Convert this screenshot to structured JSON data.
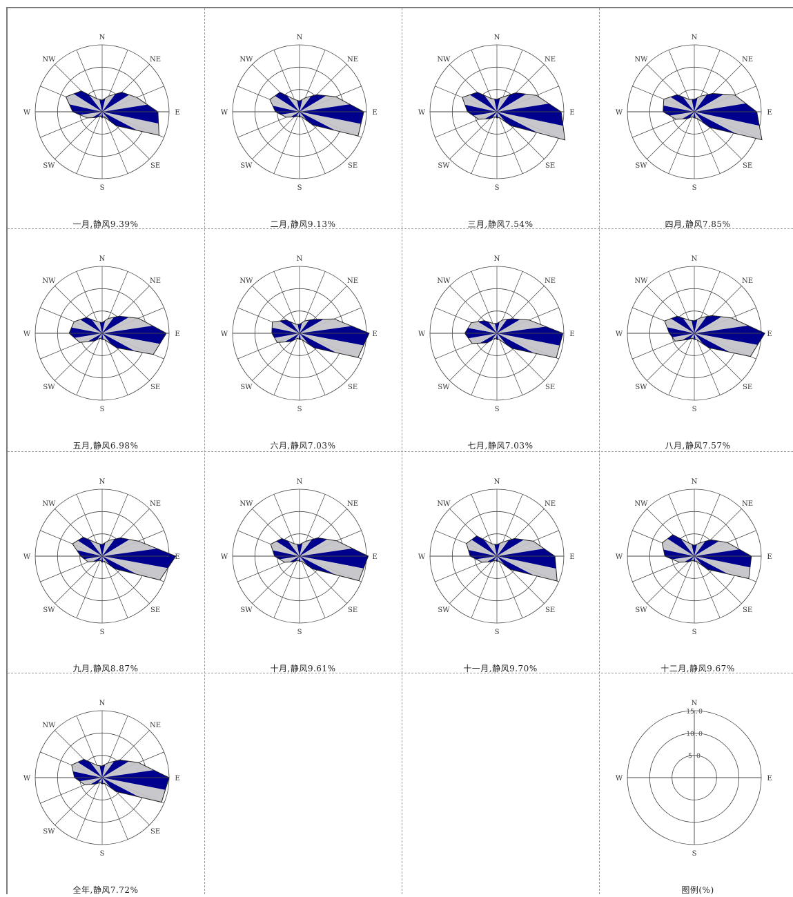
{
  "directions": [
    "N",
    "NNE",
    "NE",
    "ENE",
    "E",
    "ESE",
    "SE",
    "SSE",
    "S",
    "SSW",
    "SW",
    "WSW",
    "W",
    "WNW",
    "NW",
    "NNW"
  ],
  "direction_labels": [
    "N",
    "NE",
    "E",
    "SE",
    "S",
    "SW",
    "W",
    "NW"
  ],
  "colors": {
    "fill_dark": "#00008f",
    "fill_light": "#c8c8cc",
    "outline": "#222222",
    "grid": "#444444"
  },
  "chart_data": [
    {
      "type": "wind-rose",
      "title": "一月,静风9.39%",
      "values": [
        2.6,
        3.8,
        6.2,
        8.4,
        12.5,
        13.8,
        4.4,
        1.2,
        1.4,
        1.0,
        1.8,
        3.6,
        6.6,
        8.8,
        6.6,
        3.2
      ]
    },
    {
      "type": "wind-rose",
      "title": "二月,静风9.13%",
      "values": [
        2.4,
        3.4,
        5.4,
        8.8,
        14.4,
        14.2,
        4.2,
        1.2,
        1.2,
        1.0,
        1.6,
        3.2,
        5.4,
        7.2,
        6.2,
        3.0
      ]
    },
    {
      "type": "wind-rose",
      "title": "三月,静风7.54%",
      "values": [
        2.8,
        3.6,
        6.0,
        9.6,
        14.4,
        16.6,
        4.4,
        1.4,
        1.4,
        1.2,
        2.2,
        4.4,
        6.6,
        8.4,
        6.2,
        3.2
      ]
    },
    {
      "type": "wind-rose",
      "title": "四月,静风7.85%",
      "values": [
        2.8,
        3.8,
        5.8,
        9.8,
        14.0,
        16.4,
        5.0,
        1.6,
        1.4,
        1.2,
        2.2,
        4.4,
        7.0,
        7.4,
        5.4,
        3.0
      ]
    },
    {
      "type": "wind-rose",
      "title": "五月,静风6.98%",
      "values": [
        2.4,
        3.6,
        5.4,
        8.8,
        14.4,
        12.4,
        4.6,
        1.6,
        1.4,
        1.2,
        2.4,
        5.4,
        7.4,
        6.8,
        5.0,
        2.8
      ]
    },
    {
      "type": "wind-rose",
      "title": "六月,静风7.03%",
      "values": [
        2.0,
        3.0,
        4.4,
        8.4,
        15.6,
        14.2,
        4.6,
        1.6,
        1.4,
        1.2,
        2.6,
        5.4,
        6.2,
        6.6,
        4.2,
        2.2
      ]
    },
    {
      "type": "wind-rose",
      "title": "七月,静风7.03%",
      "values": [
        2.2,
        3.2,
        4.6,
        7.8,
        14.8,
        14.4,
        4.8,
        1.6,
        1.4,
        1.2,
        3.0,
        6.0,
        7.2,
        6.2,
        4.0,
        2.4
      ]
    },
    {
      "type": "wind-rose",
      "title": "八月,静风7.57%",
      "values": [
        2.8,
        3.8,
        5.6,
        9.0,
        15.8,
        13.6,
        4.6,
        1.6,
        1.4,
        1.2,
        2.0,
        4.6,
        5.6,
        7.2,
        5.4,
        3.2
      ]
    },
    {
      "type": "wind-rose",
      "title": "九月,静风8.87%",
      "values": [
        2.6,
        3.8,
        5.8,
        8.8,
        18.2,
        14.0,
        4.0,
        1.2,
        1.4,
        1.0,
        1.6,
        3.4,
        4.8,
        7.2,
        6.0,
        3.2
      ]
    },
    {
      "type": "wind-rose",
      "title": "十月,静风9.61%",
      "values": [
        2.6,
        3.6,
        5.8,
        9.0,
        15.4,
        14.4,
        4.0,
        1.2,
        1.2,
        1.0,
        1.8,
        3.6,
        5.6,
        7.0,
        5.6,
        3.0
      ]
    },
    {
      "type": "wind-rose",
      "title": "十一月,静风9.70%",
      "values": [
        2.6,
        3.4,
        5.6,
        8.8,
        13.0,
        14.6,
        4.2,
        1.2,
        1.2,
        1.0,
        1.8,
        3.6,
        6.0,
        7.4,
        6.4,
        3.0
      ]
    },
    {
      "type": "wind-rose",
      "title": "十二月,静风9.67%",
      "values": [
        2.4,
        3.2,
        5.2,
        8.0,
        12.8,
        13.2,
        4.2,
        1.2,
        1.2,
        1.0,
        1.8,
        3.6,
        6.6,
        7.8,
        6.8,
        3.2
      ]
    },
    {
      "type": "wind-rose",
      "title": "全年,静风7.72%",
      "values": [
        2.6,
        3.6,
        5.6,
        8.8,
        15.0,
        14.4,
        4.4,
        1.4,
        1.4,
        1.2,
        2.0,
        4.2,
        6.2,
        7.4,
        5.8,
        3.0
      ]
    }
  ],
  "legend": {
    "caption": "图例(%)",
    "ring_labels": [
      "5.0",
      "10.0",
      "15.0"
    ],
    "ring_values": [
      5,
      10,
      15
    ],
    "direction_labels": [
      "N",
      "E",
      "S",
      "W"
    ]
  },
  "scale_max": 15
}
